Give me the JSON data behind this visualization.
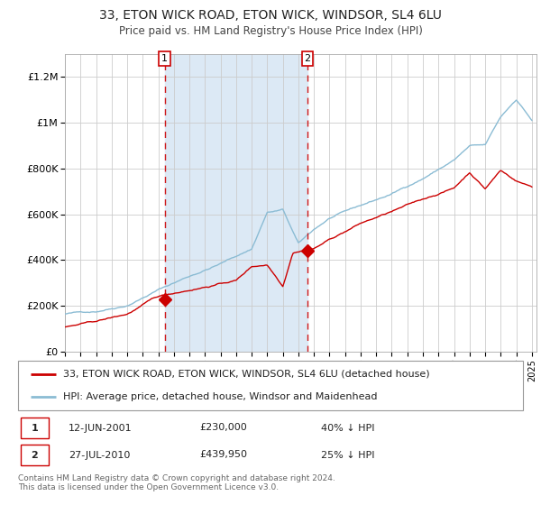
{
  "title1": "33, ETON WICK ROAD, ETON WICK, WINDSOR, SL4 6LU",
  "title2": "Price paid vs. HM Land Registry's House Price Index (HPI)",
  "background_color": "#ffffff",
  "plot_bg_color": "#ffffff",
  "shaded_region_color": "#dce9f5",
  "grid_color": "#cccccc",
  "hpi_color": "#8bbcd4",
  "price_color": "#cc0000",
  "marker_color": "#cc0000",
  "event1_year": 2001.44,
  "event2_year": 2010.57,
  "legend1": "33, ETON WICK ROAD, ETON WICK, WINDSOR, SL4 6LU (detached house)",
  "legend2": "HPI: Average price, detached house, Windsor and Maidenhead",
  "footer": "Contains HM Land Registry data © Crown copyright and database right 2024.\nThis data is licensed under the Open Government Licence v3.0.",
  "ylim_max": 1300000,
  "x_start_year": 1995,
  "x_end_year": 2025,
  "hpi_keypoints_x": [
    0,
    0.067,
    0.133,
    0.2,
    0.267,
    0.333,
    0.4,
    0.433,
    0.467,
    0.5,
    0.533,
    0.567,
    0.633,
    0.7,
    0.767,
    0.833,
    0.867,
    0.9,
    0.933,
    0.967,
    1.0
  ],
  "hpi_keypoints_y": [
    165000,
    178000,
    210000,
    280000,
    340000,
    395000,
    460000,
    620000,
    630000,
    480000,
    540000,
    590000,
    640000,
    690000,
    760000,
    840000,
    900000,
    900000,
    1020000,
    1100000,
    1010000
  ],
  "price_keypoints_x": [
    0,
    0.067,
    0.133,
    0.194,
    0.267,
    0.333,
    0.367,
    0.4,
    0.433,
    0.467,
    0.488,
    0.533,
    0.567,
    0.633,
    0.7,
    0.767,
    0.833,
    0.867,
    0.9,
    0.933,
    0.967,
    1.0
  ],
  "price_keypoints_y": [
    108000,
    130000,
    160000,
    230000,
    265000,
    295000,
    310000,
    370000,
    380000,
    290000,
    440000,
    460000,
    500000,
    570000,
    620000,
    670000,
    720000,
    790000,
    720000,
    800000,
    755000,
    730000
  ],
  "noise_seed": 42,
  "noise_scale_hpi": 2500,
  "noise_scale_price": 2000
}
